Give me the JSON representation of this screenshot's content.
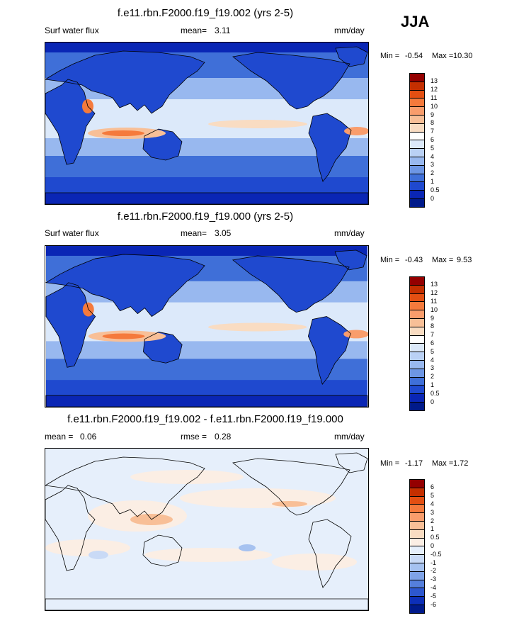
{
  "season": "JJA",
  "panels": [
    {
      "id": "p1",
      "title": "f.e11.rbn.F2000.f19_f19.002 (yrs 2-5)",
      "left_label": "Surf water flux",
      "mid_label": "mean=",
      "mid_value": "3.11",
      "units": "mm/day",
      "min_label": "Min =",
      "min_value": "-0.54",
      "max_label": "Max =",
      "max_value": "10.30",
      "colorbar_ticks": [
        "13",
        "12",
        "11",
        "10",
        "9",
        "8",
        "7",
        "6",
        "5",
        "4",
        "3",
        "2",
        "1",
        "0.5",
        "0"
      ],
      "colorbar_colors": [
        "#940000",
        "#c42f00",
        "#e34f12",
        "#f57a3c",
        "#f99d6c",
        "#f8bf97",
        "#f9dcc2",
        "#ffffff",
        "#dce9fa",
        "#bad1f5",
        "#98b8ef",
        "#6d96e4",
        "#3f6fd8",
        "#1f49cf",
        "#0a26b5",
        "#001a8a"
      ],
      "field": "flux_a"
    },
    {
      "id": "p2",
      "title": "f.e11.rbn.F2000.f19_f19.000 (yrs 2-5)",
      "left_label": "Surf water flux",
      "mid_label": "mean=",
      "mid_value": "3.05",
      "units": "mm/day",
      "min_label": "Min =",
      "min_value": "-0.43",
      "max_label": "Max =",
      "max_value": "9.53",
      "colorbar_ticks": [
        "13",
        "12",
        "11",
        "10",
        "9",
        "8",
        "7",
        "6",
        "5",
        "4",
        "3",
        "2",
        "1",
        "0.5",
        "0"
      ],
      "colorbar_colors": [
        "#940000",
        "#c42f00",
        "#e34f12",
        "#f57a3c",
        "#f99d6c",
        "#f8bf97",
        "#f9dcc2",
        "#ffffff",
        "#dce9fa",
        "#bad1f5",
        "#98b8ef",
        "#6d96e4",
        "#3f6fd8",
        "#1f49cf",
        "#0a26b5",
        "#001a8a"
      ],
      "field": "flux_b"
    },
    {
      "id": "p3",
      "title": "f.e11.rbn.F2000.f19_f19.002 - f.e11.rbn.F2000.f19_f19.000",
      "left_label": "mean =",
      "left_value": "0.06",
      "mid_label": "rmse =",
      "mid_value": "0.28",
      "units": "mm/day",
      "min_label": "Min =",
      "min_value": "-1.17",
      "max_label": "Max =",
      "max_value": "1.72",
      "colorbar_ticks": [
        "6",
        "5",
        "4",
        "3",
        "2",
        "1",
        "0.5",
        "0",
        "-0.5",
        "-1",
        "-2",
        "-3",
        "-4",
        "-5",
        "-6"
      ],
      "colorbar_colors": [
        "#940000",
        "#c42f00",
        "#e34f12",
        "#f57a3c",
        "#f99d6c",
        "#f8bf97",
        "#f9dcc2",
        "#fbeee4",
        "#e6effb",
        "#c9daf6",
        "#a6c2f0",
        "#7fa3e7",
        "#557fdc",
        "#2d57cf",
        "#0d2fb8",
        "#001a8a"
      ],
      "field": "diff"
    }
  ]
}
